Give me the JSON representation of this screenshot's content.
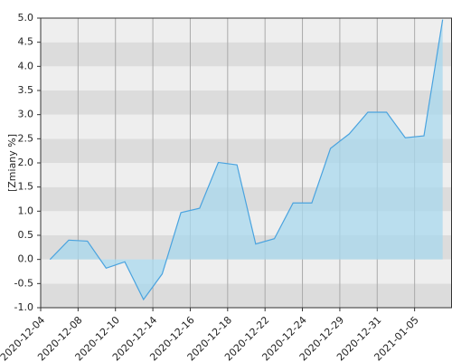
{
  "chart_data": {
    "type": "area",
    "y_label": "[Zmiany %]",
    "values": [
      0.0,
      0.4,
      0.38,
      -0.18,
      -0.05,
      -0.83,
      -0.3,
      0.97,
      1.06,
      2.01,
      1.96,
      0.32,
      0.43,
      1.17,
      1.17,
      2.3,
      2.6,
      3.05,
      3.05,
      2.52,
      2.56,
      4.97
    ],
    "xticks": [
      "2020-12-04",
      "2020-12-08",
      "2020-12-10",
      "2020-12-14",
      "2020-12-16",
      "2020-12-18",
      "2020-12-22",
      "2020-12-24",
      "2020-12-29",
      "2020-12-31",
      "2021-01-05"
    ],
    "ylim": [
      -1.0,
      5.0
    ],
    "yticks": [
      {
        "value": -1,
        "label": "-1.0"
      },
      -0.5,
      {
        "value": 0,
        "label": "0.0"
      },
      0.5,
      {
        "value": 1,
        "label": "1.0"
      },
      1.5,
      {
        "value": 2,
        "label": "2.0"
      },
      2.5,
      {
        "value": 3,
        "label": "3.0"
      },
      3.5,
      {
        "value": 4,
        "label": "4.0"
      },
      4.5,
      {
        "value": 5,
        "label": "5.0"
      }
    ],
    "color": "#4aa3df",
    "fill": "#a8d8ee",
    "grid": true
  }
}
